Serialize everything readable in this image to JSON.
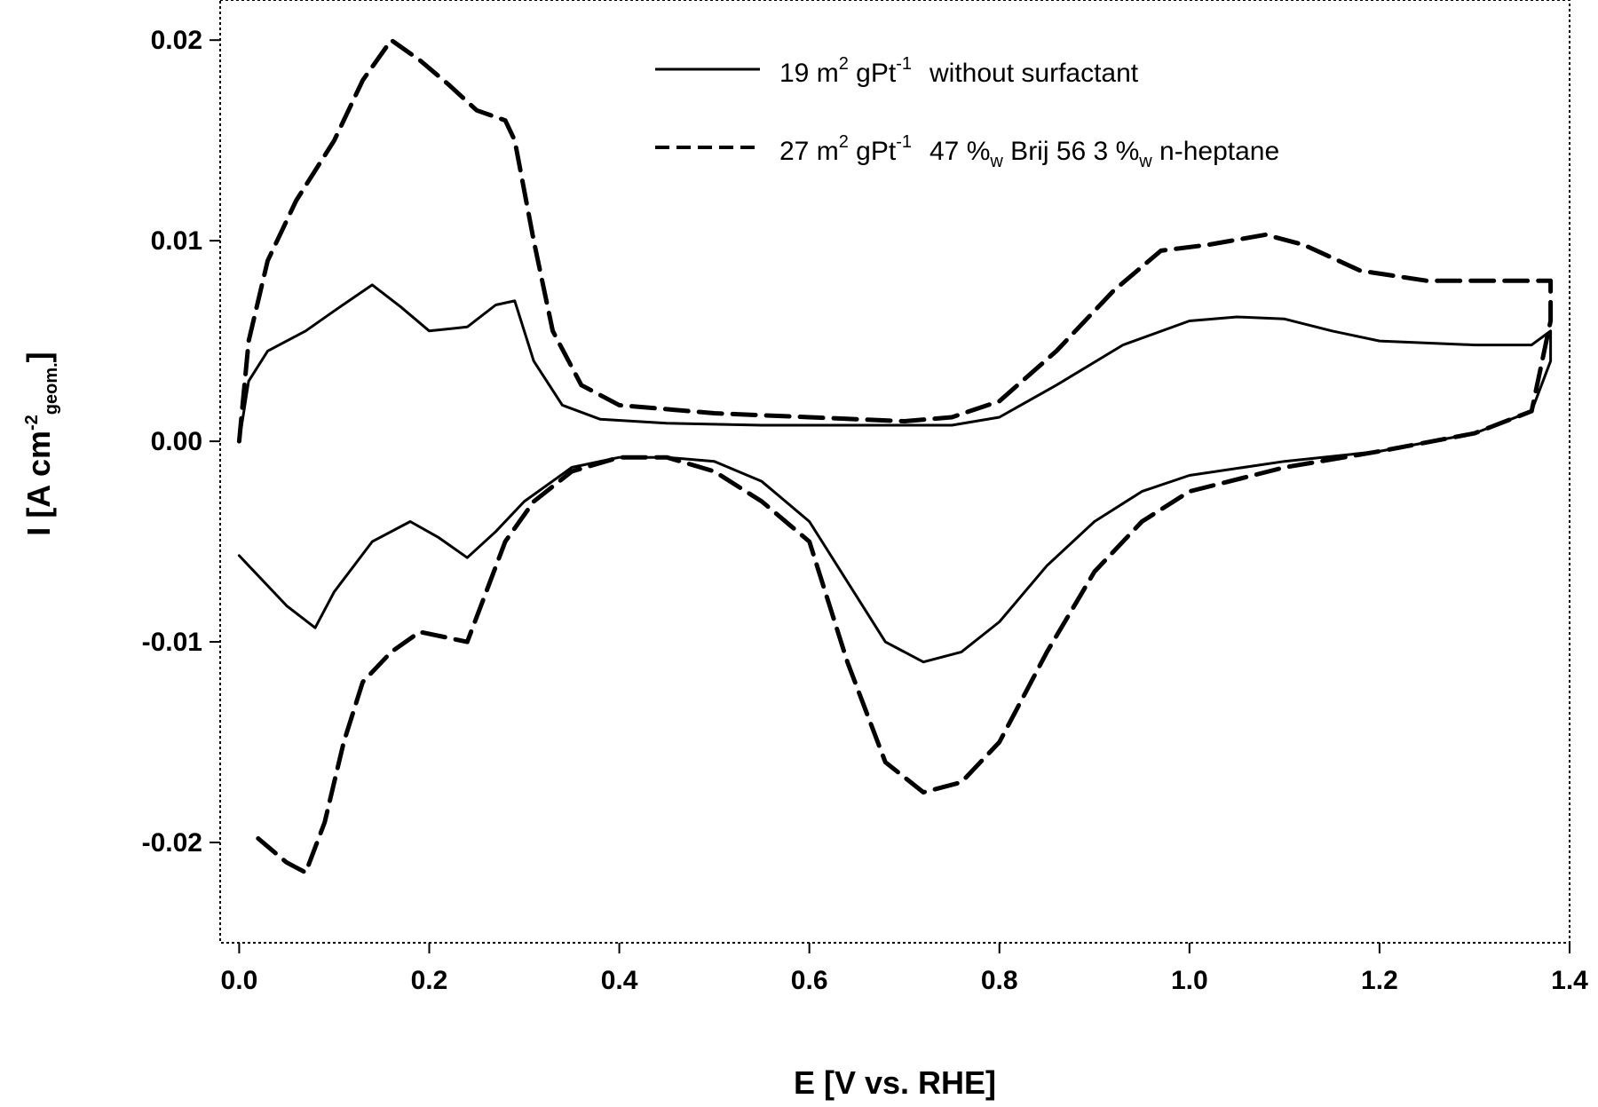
{
  "chart_data": {
    "type": "line",
    "title": "",
    "xlabel": "E [V vs. RHE]",
    "ylabel": "I [A cm",
    "ylabel_sup": "-2",
    "ylabel_sub": "geom.",
    "ylabel_end": "]",
    "xlim": [
      -0.02,
      1.4
    ],
    "ylim": [
      -0.025,
      0.022
    ],
    "x_ticks": [
      0.0,
      0.2,
      0.4,
      0.6,
      0.8,
      1.0,
      1.2,
      1.4
    ],
    "x_tick_labels": [
      "0.0",
      "0.2",
      "0.4",
      "0.6",
      "0.8",
      "1.0",
      "1.2",
      "1.4"
    ],
    "y_ticks": [
      -0.02,
      -0.01,
      0.0,
      0.01,
      0.02
    ],
    "y_tick_labels": [
      "-0.02",
      "-0.01",
      "0.00",
      "0.01",
      "0.02"
    ],
    "grid": false,
    "legend_position": "top-right",
    "series": [
      {
        "name": "19 m² gPt⁻¹ without surfactant",
        "legend": {
          "a": "19 m",
          "a_sup": "2",
          "b": " gPt",
          "b_sup": "-1",
          "c": "without surfactant"
        },
        "style": "solid",
        "color": "#000000",
        "points": [
          [
            0.0,
            0.0
          ],
          [
            0.01,
            0.003
          ],
          [
            0.03,
            0.0045
          ],
          [
            0.07,
            0.0055
          ],
          [
            0.1,
            0.0065
          ],
          [
            0.14,
            0.0078
          ],
          [
            0.17,
            0.0067
          ],
          [
            0.2,
            0.0055
          ],
          [
            0.24,
            0.0057
          ],
          [
            0.27,
            0.0068
          ],
          [
            0.29,
            0.007
          ],
          [
            0.31,
            0.004
          ],
          [
            0.34,
            0.0018
          ],
          [
            0.38,
            0.0011
          ],
          [
            0.45,
            0.0009
          ],
          [
            0.55,
            0.0008
          ],
          [
            0.65,
            0.0008
          ],
          [
            0.75,
            0.0008
          ],
          [
            0.8,
            0.0012
          ],
          [
            0.86,
            0.0028
          ],
          [
            0.93,
            0.0048
          ],
          [
            1.0,
            0.006
          ],
          [
            1.05,
            0.0062
          ],
          [
            1.1,
            0.0061
          ],
          [
            1.15,
            0.0055
          ],
          [
            1.2,
            0.005
          ],
          [
            1.3,
            0.0048
          ],
          [
            1.36,
            0.0048
          ],
          [
            1.38,
            0.0055
          ],
          [
            1.38,
            0.004
          ],
          [
            1.36,
            0.0015
          ],
          [
            1.3,
            0.0004
          ],
          [
            1.2,
            -0.0005
          ],
          [
            1.1,
            -0.001
          ],
          [
            1.0,
            -0.0017
          ],
          [
            0.95,
            -0.0025
          ],
          [
            0.9,
            -0.004
          ],
          [
            0.85,
            -0.0062
          ],
          [
            0.8,
            -0.009
          ],
          [
            0.76,
            -0.0105
          ],
          [
            0.72,
            -0.011
          ],
          [
            0.68,
            -0.01
          ],
          [
            0.64,
            -0.007
          ],
          [
            0.6,
            -0.004
          ],
          [
            0.55,
            -0.002
          ],
          [
            0.5,
            -0.001
          ],
          [
            0.45,
            -0.0008
          ],
          [
            0.4,
            -0.0008
          ],
          [
            0.35,
            -0.0013
          ],
          [
            0.3,
            -0.003
          ],
          [
            0.27,
            -0.0045
          ],
          [
            0.24,
            -0.0058
          ],
          [
            0.21,
            -0.0048
          ],
          [
            0.18,
            -0.004
          ],
          [
            0.14,
            -0.005
          ],
          [
            0.1,
            -0.0075
          ],
          [
            0.08,
            -0.0093
          ],
          [
            0.05,
            -0.0082
          ],
          [
            0.0,
            -0.0057
          ]
        ]
      },
      {
        "name": "27 m² gPt⁻¹ 47 %w Brij 56 3 %w n-heptane",
        "legend": {
          "a": "27 m",
          "a_sup": "2",
          "b": " gPt",
          "b_sup": "-1",
          "c": "47 %",
          "c_sub": "w",
          "d": " Brij 56 3 %",
          "d_sub": "w",
          "e": " n-heptane"
        },
        "style": "dashed",
        "color": "#000000",
        "points": [
          [
            0.0,
            0.0
          ],
          [
            0.01,
            0.005
          ],
          [
            0.03,
            0.009
          ],
          [
            0.06,
            0.012
          ],
          [
            0.1,
            0.015
          ],
          [
            0.13,
            0.018
          ],
          [
            0.16,
            0.02
          ],
          [
            0.19,
            0.019
          ],
          [
            0.22,
            0.0178
          ],
          [
            0.25,
            0.0165
          ],
          [
            0.28,
            0.016
          ],
          [
            0.29,
            0.015
          ],
          [
            0.31,
            0.01
          ],
          [
            0.33,
            0.0055
          ],
          [
            0.36,
            0.0028
          ],
          [
            0.4,
            0.0018
          ],
          [
            0.5,
            0.0014
          ],
          [
            0.6,
            0.0012
          ],
          [
            0.7,
            0.001
          ],
          [
            0.75,
            0.0012
          ],
          [
            0.8,
            0.002
          ],
          [
            0.86,
            0.0045
          ],
          [
            0.92,
            0.0075
          ],
          [
            0.97,
            0.0095
          ],
          [
            1.02,
            0.0098
          ],
          [
            1.08,
            0.0103
          ],
          [
            1.12,
            0.0098
          ],
          [
            1.18,
            0.0085
          ],
          [
            1.25,
            0.008
          ],
          [
            1.35,
            0.008
          ],
          [
            1.38,
            0.008
          ],
          [
            1.38,
            0.006
          ],
          [
            1.36,
            0.0015
          ],
          [
            1.3,
            0.0004
          ],
          [
            1.2,
            -0.0005
          ],
          [
            1.1,
            -0.0013
          ],
          [
            1.0,
            -0.0025
          ],
          [
            0.95,
            -0.004
          ],
          [
            0.9,
            -0.0065
          ],
          [
            0.85,
            -0.0105
          ],
          [
            0.8,
            -0.015
          ],
          [
            0.76,
            -0.017
          ],
          [
            0.72,
            -0.0175
          ],
          [
            0.68,
            -0.016
          ],
          [
            0.64,
            -0.011
          ],
          [
            0.6,
            -0.005
          ],
          [
            0.55,
            -0.003
          ],
          [
            0.5,
            -0.0015
          ],
          [
            0.45,
            -0.0008
          ],
          [
            0.4,
            -0.0008
          ],
          [
            0.35,
            -0.0015
          ],
          [
            0.31,
            -0.003
          ],
          [
            0.28,
            -0.005
          ],
          [
            0.26,
            -0.0075
          ],
          [
            0.24,
            -0.01
          ],
          [
            0.22,
            -0.0098
          ],
          [
            0.19,
            -0.0095
          ],
          [
            0.16,
            -0.0105
          ],
          [
            0.13,
            -0.012
          ],
          [
            0.11,
            -0.015
          ],
          [
            0.09,
            -0.019
          ],
          [
            0.07,
            -0.0215
          ],
          [
            0.05,
            -0.021
          ],
          [
            0.02,
            -0.0198
          ]
        ]
      }
    ]
  }
}
